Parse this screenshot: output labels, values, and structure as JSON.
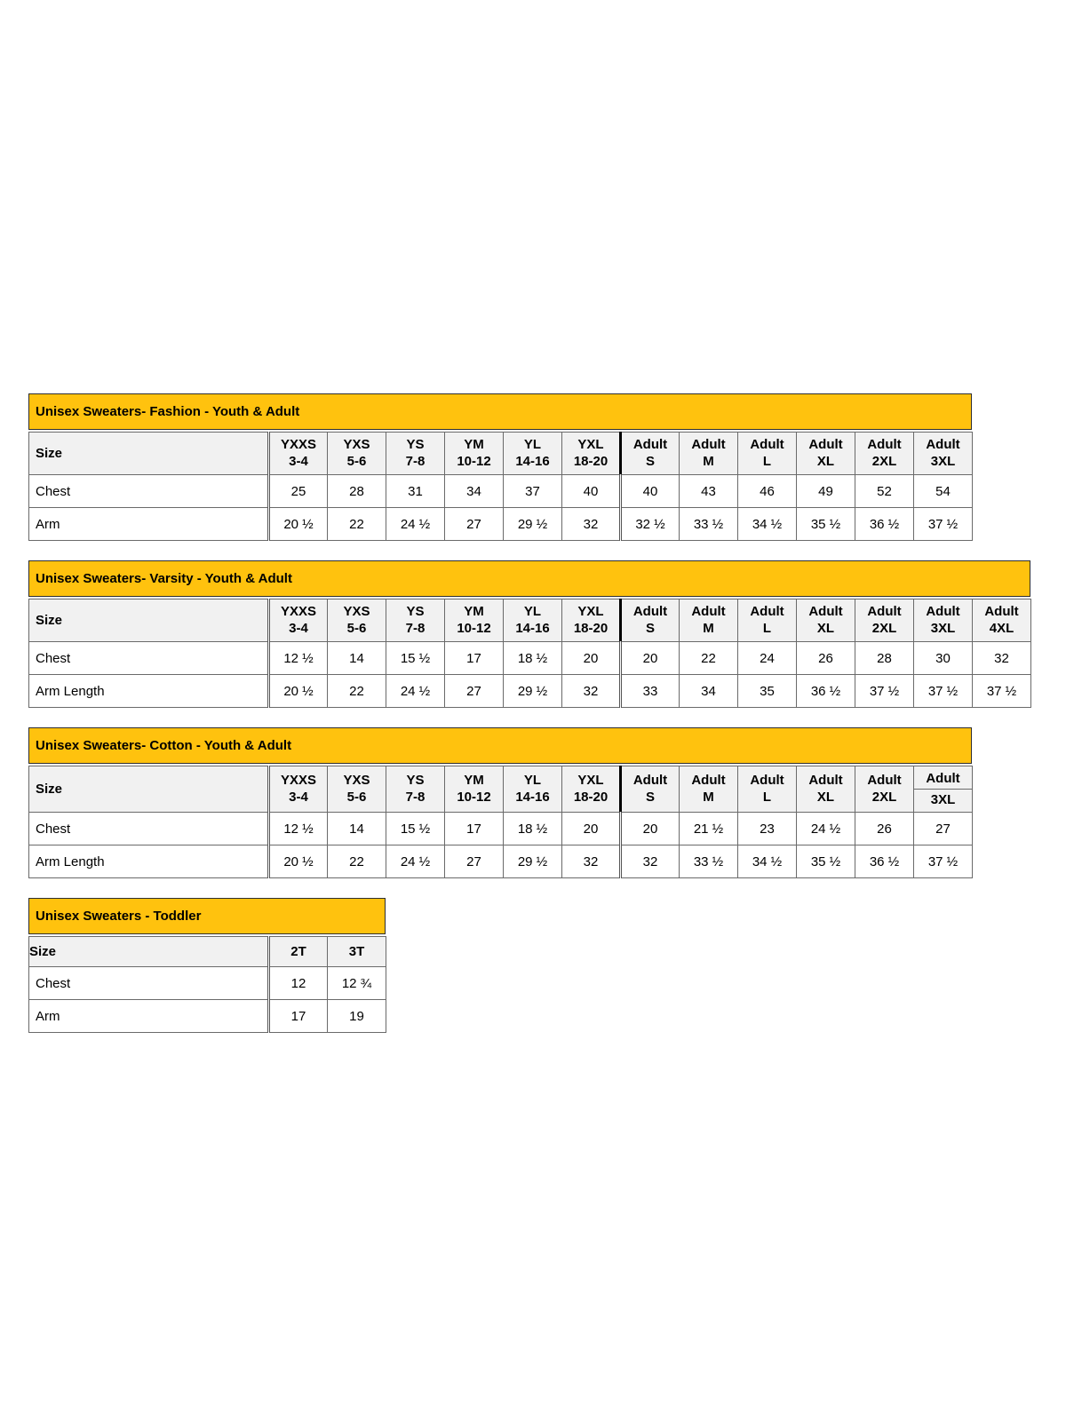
{
  "colors": {
    "title_bg": "#FFC20E",
    "title_text": "#000000",
    "header_bg": "#F1F1F1",
    "cell_border": "#6A6A6A",
    "outer_border": "#2E2E2E",
    "adult_divider": "#000000",
    "page_bg": "#FFFFFF"
  },
  "tables": [
    {
      "title": "Unisex Sweaters- Fashion - Youth & Adult",
      "size_label": "Size",
      "adult_start": 6,
      "columns": [
        {
          "l1": "YXXS",
          "l2": "3-4"
        },
        {
          "l1": "YXS",
          "l2": "5-6"
        },
        {
          "l1": "YS",
          "l2": "7-8"
        },
        {
          "l1": "YM",
          "l2": "10-12"
        },
        {
          "l1": "YL",
          "l2": "14-16"
        },
        {
          "l1": "YXL",
          "l2": "18-20"
        },
        {
          "l1": "Adult",
          "l2": "S"
        },
        {
          "l1": "Adult",
          "l2": "M"
        },
        {
          "l1": "Adult",
          "l2": "L"
        },
        {
          "l1": "Adult",
          "l2": "XL"
        },
        {
          "l1": "Adult",
          "l2": "2XL"
        },
        {
          "l1": "Adult",
          "l2": "3XL"
        }
      ],
      "rows": [
        {
          "label": "Chest",
          "values": [
            "25",
            "28",
            "31",
            "34",
            "37",
            "40",
            "40",
            "43",
            "46",
            "49",
            "52",
            "54"
          ]
        },
        {
          "label": "Arm",
          "values": [
            "20 ½",
            "22",
            "24 ½",
            "27",
            "29 ½",
            "32",
            "32 ½",
            "33 ½",
            "34 ½",
            "35 ½",
            "36 ½",
            "37 ½"
          ]
        }
      ]
    },
    {
      "title": "Unisex Sweaters- Varsity - Youth & Adult",
      "size_label": "Size",
      "adult_start": 6,
      "columns": [
        {
          "l1": "YXXS",
          "l2": "3-4"
        },
        {
          "l1": "YXS",
          "l2": "5-6"
        },
        {
          "l1": "YS",
          "l2": "7-8"
        },
        {
          "l1": "YM",
          "l2": "10-12"
        },
        {
          "l1": "YL",
          "l2": "14-16"
        },
        {
          "l1": "YXL",
          "l2": "18-20"
        },
        {
          "l1": "Adult",
          "l2": "S"
        },
        {
          "l1": "Adult",
          "l2": "M"
        },
        {
          "l1": "Adult",
          "l2": "L"
        },
        {
          "l1": "Adult",
          "l2": "XL"
        },
        {
          "l1": "Adult",
          "l2": "2XL"
        },
        {
          "l1": "Adult",
          "l2": "3XL"
        },
        {
          "l1": "Adult",
          "l2": "4XL"
        }
      ],
      "rows": [
        {
          "label": "Chest",
          "values": [
            "12 ½",
            "14",
            "15 ½",
            "17",
            "18 ½",
            "20",
            "20",
            "22",
            "24",
            "26",
            "28",
            "30",
            "32"
          ]
        },
        {
          "label": "Arm Length",
          "values": [
            "20 ½",
            "22",
            "24 ½",
            "27",
            "29 ½",
            "32",
            "33",
            "34",
            "35",
            "36 ½",
            "37 ½",
            "37 ½",
            "37 ½"
          ]
        }
      ]
    },
    {
      "title": "Unisex Sweaters- Cotton - Youth & Adult",
      "size_label": "Size",
      "adult_start": 6,
      "columns": [
        {
          "l1": "YXXS",
          "l2": "3-4"
        },
        {
          "l1": "YXS",
          "l2": "5-6"
        },
        {
          "l1": "YS",
          "l2": "7-8"
        },
        {
          "l1": "YM",
          "l2": "10-12"
        },
        {
          "l1": "YL",
          "l2": "14-16"
        },
        {
          "l1": "YXL",
          "l2": "18-20"
        },
        {
          "l1": "Adult",
          "l2": "S"
        },
        {
          "l1": "Adult",
          "l2": "M"
        },
        {
          "l1": "Adult",
          "l2": "L"
        },
        {
          "l1": "Adult",
          "l2": "XL"
        },
        {
          "l1": "Adult",
          "l2": "2XL"
        },
        {
          "l1": "Adult",
          "l2": "3XL",
          "split": true
        }
      ],
      "rows": [
        {
          "label": "Chest",
          "values": [
            "12 ½",
            "14",
            "15 ½",
            "17",
            "18 ½",
            "20",
            "20",
            "21 ½",
            "23",
            "24 ½",
            "26",
            "27"
          ]
        },
        {
          "label": "Arm Length",
          "values": [
            "20 ½",
            "22",
            "24 ½",
            "27",
            "29 ½",
            "32",
            "32",
            "33 ½",
            "34 ½",
            "35 ½",
            "36 ½",
            "37 ½"
          ]
        }
      ]
    },
    {
      "title": "Unisex Sweaters - Toddler",
      "size_label": "Size",
      "adult_start": -1,
      "columns": [
        {
          "l1": "2T"
        },
        {
          "l1": "3T"
        }
      ],
      "rows": [
        {
          "label": "Chest",
          "values": [
            "12",
            "12 ¾"
          ]
        },
        {
          "label": "Arm",
          "values": [
            "17",
            "19"
          ]
        }
      ]
    }
  ],
  "layout_note": ""
}
